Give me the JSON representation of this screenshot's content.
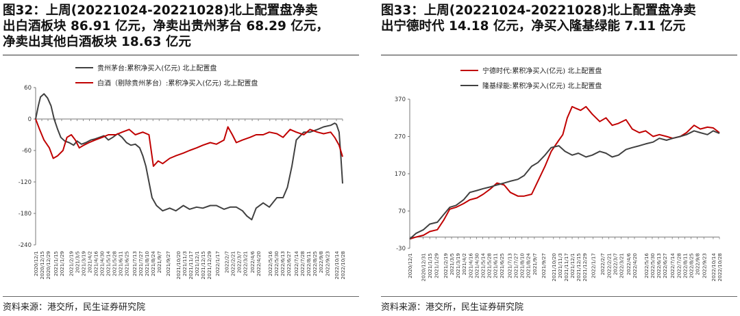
{
  "sources": {
    "left": "资料来源：港交所，民生证券研究院",
    "right": "资料来源：港交所，民生证券研究院"
  },
  "chart_data": [
    {
      "type": "line",
      "title": "图32：上周(20221024-20221028)北上配置盘净卖出白酒板块 86.91 亿元，净卖出贵州茅台 68.29 亿元，净卖出其他白酒板块 18.63 亿元",
      "title_lines": [
        "图32：上周(20221024-20221028)北上配置盘净卖",
        "出白酒板块 86.91 亿元，净卖出贵州茅台 68.29 亿元，",
        "净卖出其他白酒板块 18.63 亿元"
      ],
      "xlabel": "",
      "ylabel": "",
      "ylim": [
        -240,
        60
      ],
      "yticks": [
        60,
        0,
        -60,
        -120,
        -180,
        -240
      ],
      "yticks_labels": [
        "60",
        "0",
        "-60",
        "-120",
        "-180",
        "-240"
      ],
      "xlim": [
        "2020-12-01",
        "2022-10-28"
      ],
      "x_ticks": [
        "2020/12/1",
        "2020/12/15",
        "2020/12/29",
        "2021/1/15",
        "2021/1/29",
        "2021/2/19",
        "2021/3/5",
        "2021/3/19",
        "2021/4/2",
        "2021/4/16",
        "2021/4/30",
        "2021/5/14",
        "2021/5/28",
        "2021/6/11",
        "2021/6/25",
        "2021/7/13",
        "2021/7/27",
        "2021/8/10",
        "2021/8/24",
        "2021/9/7",
        "2021/9/27",
        "2021/10/20",
        "2021/11/3",
        "2021/11/17",
        "2021/12/1",
        "2021/12/15",
        "2021/12/29",
        "2022/1/17",
        "2022/2/7",
        "2022/2/21",
        "2022/3/7",
        "2022/3/21",
        "2022/4/6",
        "2022/4/20",
        "2022/5/16",
        "2022/5/30",
        "2022/6/13",
        "2022/6/27",
        "2022/7/14",
        "2022/7/28",
        "2022/8/11",
        "2022/8/25",
        "2022/9/8",
        "2022/9/23",
        "2022/10/14",
        "2022/10/28"
      ],
      "grid": false,
      "legend_position": "top-left",
      "series": [
        {
          "name": "贵州茅台:累积净买入(亿元) 北上配置盘",
          "color": "#404040",
          "x": [
            "2020-12-01",
            "2020-12-07",
            "2020-12-12",
            "2020-12-20",
            "2020-12-28",
            "2021-01-05",
            "2021-01-12",
            "2021-01-20",
            "2021-01-27",
            "2021-02-05",
            "2021-02-15",
            "2021-02-25",
            "2021-03-05",
            "2021-03-15",
            "2021-03-25",
            "2021-04-05",
            "2021-04-15",
            "2021-04-25",
            "2021-05-05",
            "2021-05-15",
            "2021-05-25",
            "2021-06-05",
            "2021-06-15",
            "2021-06-25",
            "2021-07-05",
            "2021-07-15",
            "2021-07-25",
            "2021-08-01",
            "2021-08-08",
            "2021-08-15",
            "2021-08-22",
            "2021-09-01",
            "2021-09-15",
            "2021-10-01",
            "2021-10-15",
            "2021-11-01",
            "2021-11-15",
            "2021-12-01",
            "2021-12-15",
            "2022-01-01",
            "2022-01-15",
            "2022-02-01",
            "2022-02-15",
            "2022-03-01",
            "2022-03-15",
            "2022-03-25",
            "2022-04-05",
            "2022-04-15",
            "2022-05-01",
            "2022-05-15",
            "2022-06-01",
            "2022-06-15",
            "2022-06-25",
            "2022-07-05",
            "2022-07-15",
            "2022-08-01",
            "2022-08-15",
            "2022-09-01",
            "2022-09-15",
            "2022-10-01",
            "2022-10-10",
            "2022-10-14",
            "2022-10-20",
            "2022-10-24",
            "2022-10-28"
          ],
          "y": [
            0,
            25,
            42,
            48,
            40,
            25,
            0,
            -20,
            -35,
            -42,
            -45,
            -50,
            -42,
            -48,
            -45,
            -40,
            -38,
            -35,
            -32,
            -40,
            -35,
            -28,
            -35,
            -45,
            -50,
            -48,
            -55,
            -70,
            -90,
            -120,
            -150,
            -165,
            -175,
            -170,
            -175,
            -165,
            -172,
            -168,
            -170,
            -165,
            -165,
            -172,
            -168,
            -168,
            -175,
            -185,
            -192,
            -170,
            -160,
            -168,
            -150,
            -150,
            -130,
            -90,
            -40,
            -25,
            -25,
            -20,
            -15,
            -12,
            -8,
            -10,
            -25,
            -70,
            -123
          ]
        },
        {
          "name": "白酒（剔除贵州茅台）:累积净买入(亿元) 北上配置盘",
          "color": "#c00000",
          "x": [
            "2020-12-01",
            "2020-12-10",
            "2020-12-20",
            "2021-01-01",
            "2021-01-10",
            "2021-01-20",
            "2021-02-01",
            "2021-02-10",
            "2021-02-20",
            "2021-03-01",
            "2021-03-10",
            "2021-03-20",
            "2021-04-01",
            "2021-04-15",
            "2021-05-01",
            "2021-05-15",
            "2021-06-01",
            "2021-06-15",
            "2021-07-01",
            "2021-07-15",
            "2021-08-01",
            "2021-08-15",
            "2021-08-25",
            "2021-09-05",
            "2021-09-15",
            "2021-10-01",
            "2021-10-15",
            "2021-11-01",
            "2021-11-15",
            "2021-12-01",
            "2021-12-15",
            "2022-01-01",
            "2022-01-15",
            "2022-02-01",
            "2022-02-10",
            "2022-02-20",
            "2022-03-01",
            "2022-03-15",
            "2022-04-01",
            "2022-04-15",
            "2022-05-01",
            "2022-05-15",
            "2022-06-01",
            "2022-06-15",
            "2022-07-01",
            "2022-07-15",
            "2022-08-01",
            "2022-08-15",
            "2022-09-01",
            "2022-09-15",
            "2022-10-01",
            "2022-10-10",
            "2022-10-20",
            "2022-10-28"
          ],
          "y": [
            0,
            -20,
            -40,
            -55,
            -75,
            -70,
            -60,
            -35,
            -30,
            -40,
            -55,
            -50,
            -45,
            -40,
            -35,
            -30,
            -30,
            -25,
            -20,
            -30,
            -25,
            -30,
            -90,
            -80,
            -85,
            -75,
            -70,
            -65,
            -60,
            -55,
            -50,
            -45,
            -48,
            -40,
            -15,
            -30,
            -45,
            -40,
            -35,
            -30,
            -30,
            -25,
            -28,
            -35,
            -20,
            -25,
            -30,
            -20,
            -25,
            -28,
            -25,
            -35,
            -50,
            -72
          ]
        }
      ]
    },
    {
      "type": "line",
      "title": "图33：上周(20221024-20221028)北上配置盘净卖出宁德时代 14.18 亿元，净买入隆基绿能 7.11 亿元",
      "title_lines": [
        "图33：上周(20221024-20221028)北上配置盘净卖",
        "出宁德时代 14.18 亿元，净买入隆基绿能 7.11 亿元"
      ],
      "xlabel": "",
      "ylabel": "",
      "ylim": [
        -30,
        370
      ],
      "yticks": [
        370,
        270,
        170,
        70,
        -30
      ],
      "yticks_labels": [
        "370",
        "270",
        "170",
        "70",
        "-30"
      ],
      "xlim": [
        "2020-12-01",
        "2022-10-28"
      ],
      "x_ticks": [
        "2020/12/1",
        "2020/12/31",
        "2021/1/15",
        "2021/1/29",
        "2021/2/19",
        "2021/3/5",
        "2021/3/19",
        "2021/4/2",
        "2021/4/16",
        "2021/4/30",
        "2021/5/14",
        "2021/5/28",
        "2021/6/11",
        "2021/6/25",
        "2021/7/13",
        "2021/7/27",
        "2021/8/10",
        "2021/8/24",
        "2021/9/7",
        "2021/9/27",
        "2021/10/20",
        "2021/11/3",
        "2021/11/17",
        "2021/12/1",
        "2021/12/15",
        "2021/12/29",
        "2022/1/17",
        "2022/2/7",
        "2022/2/21",
        "2022/3/7",
        "2022/3/21",
        "2022/4/6",
        "2022/4/20",
        "2022/5/16",
        "2022/5/30",
        "2022/6/13",
        "2022/6/27",
        "2022/7/14",
        "2022/7/28",
        "2022/8/11",
        "2022/8/25",
        "2022/9/8",
        "2022/9/23",
        "2022/10/14",
        "2022/10/28"
      ],
      "grid": false,
      "legend_position": "top-left",
      "series": [
        {
          "name": "宁德时代:累积净买入(亿元) 北上配置盘",
          "color": "#c00000",
          "x": [
            "2020-12-01",
            "2020-12-15",
            "2021-01-01",
            "2021-01-15",
            "2021-02-01",
            "2021-02-15",
            "2021-03-01",
            "2021-03-15",
            "2021-04-01",
            "2021-04-15",
            "2021-05-01",
            "2021-05-15",
            "2021-06-01",
            "2021-06-15",
            "2021-07-01",
            "2021-07-15",
            "2021-08-01",
            "2021-08-15",
            "2021-09-01",
            "2021-09-15",
            "2021-10-01",
            "2021-10-15",
            "2021-11-01",
            "2021-11-10",
            "2021-11-20",
            "2021-12-01",
            "2021-12-10",
            "2021-12-20",
            "2022-01-01",
            "2022-01-15",
            "2022-02-01",
            "2022-02-15",
            "2022-03-01",
            "2022-03-15",
            "2022-04-01",
            "2022-04-15",
            "2022-05-01",
            "2022-05-15",
            "2022-06-01",
            "2022-06-15",
            "2022-07-01",
            "2022-07-15",
            "2022-08-01",
            "2022-08-15",
            "2022-09-01",
            "2022-09-15",
            "2022-10-01",
            "2022-10-14",
            "2022-10-28"
          ],
          "y": [
            -5,
            0,
            5,
            15,
            20,
            45,
            75,
            80,
            90,
            100,
            105,
            115,
            130,
            145,
            140,
            120,
            110,
            110,
            115,
            150,
            190,
            230,
            260,
            275,
            320,
            350,
            345,
            340,
            350,
            330,
            310,
            320,
            300,
            305,
            315,
            290,
            280,
            285,
            270,
            275,
            270,
            265,
            270,
            280,
            300,
            290,
            295,
            293,
            280
          ]
        },
        {
          "name": "隆基绿能:累积净买入(亿元) 北上配置盘",
          "color": "#404040",
          "x": [
            "2020-12-01",
            "2020-12-15",
            "2021-01-01",
            "2021-01-15",
            "2021-02-01",
            "2021-02-15",
            "2021-03-01",
            "2021-03-15",
            "2021-04-01",
            "2021-04-15",
            "2021-05-01",
            "2021-05-15",
            "2021-06-01",
            "2021-06-15",
            "2021-07-01",
            "2021-07-15",
            "2021-08-01",
            "2021-08-15",
            "2021-09-01",
            "2021-09-15",
            "2021-10-01",
            "2021-10-15",
            "2021-11-01",
            "2021-11-15",
            "2021-12-01",
            "2021-12-15",
            "2022-01-01",
            "2022-01-15",
            "2022-02-01",
            "2022-02-15",
            "2022-03-01",
            "2022-03-15",
            "2022-04-01",
            "2022-04-15",
            "2022-05-01",
            "2022-05-15",
            "2022-06-01",
            "2022-06-15",
            "2022-07-01",
            "2022-07-15",
            "2022-08-01",
            "2022-08-15",
            "2022-09-01",
            "2022-09-15",
            "2022-10-01",
            "2022-10-14",
            "2022-10-28"
          ],
          "y": [
            -5,
            10,
            20,
            35,
            40,
            60,
            80,
            85,
            100,
            120,
            125,
            130,
            135,
            140,
            145,
            150,
            155,
            165,
            190,
            200,
            220,
            240,
            245,
            230,
            220,
            225,
            215,
            220,
            230,
            225,
            215,
            220,
            235,
            240,
            245,
            250,
            255,
            265,
            260,
            265,
            270,
            275,
            285,
            280,
            275,
            285,
            278
          ]
        }
      ]
    }
  ]
}
